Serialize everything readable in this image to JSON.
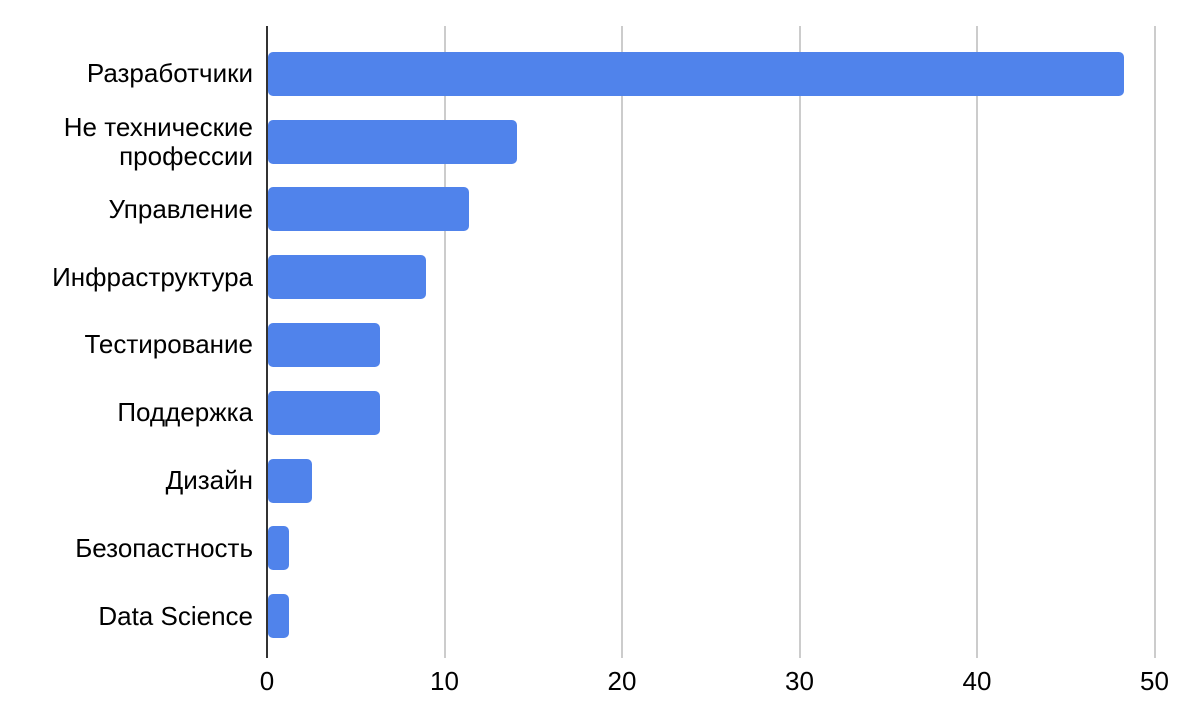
{
  "chart_data": {
    "type": "bar",
    "orientation": "horizontal",
    "title": "",
    "xlabel": "",
    "ylabel": "",
    "categories": [
      "Разработчики",
      "Не технические профессии",
      "Управление",
      "Инфраструктура",
      "Тестирование",
      "Поддержка",
      "Дизайн",
      "Безопастность",
      "Data Science"
    ],
    "values": [
      48.2,
      14,
      11.3,
      8.9,
      6.3,
      6.3,
      2.5,
      1.2,
      1.2
    ],
    "xlim": [
      0,
      50
    ],
    "xticks": [
      0,
      10,
      20,
      30,
      40,
      50
    ],
    "grid": true,
    "legend": false,
    "colors": {
      "bar": "#5083eb",
      "gridline": "#cccccc",
      "axis_line": "#333333",
      "text": "#000000",
      "background": "#ffffff"
    }
  }
}
